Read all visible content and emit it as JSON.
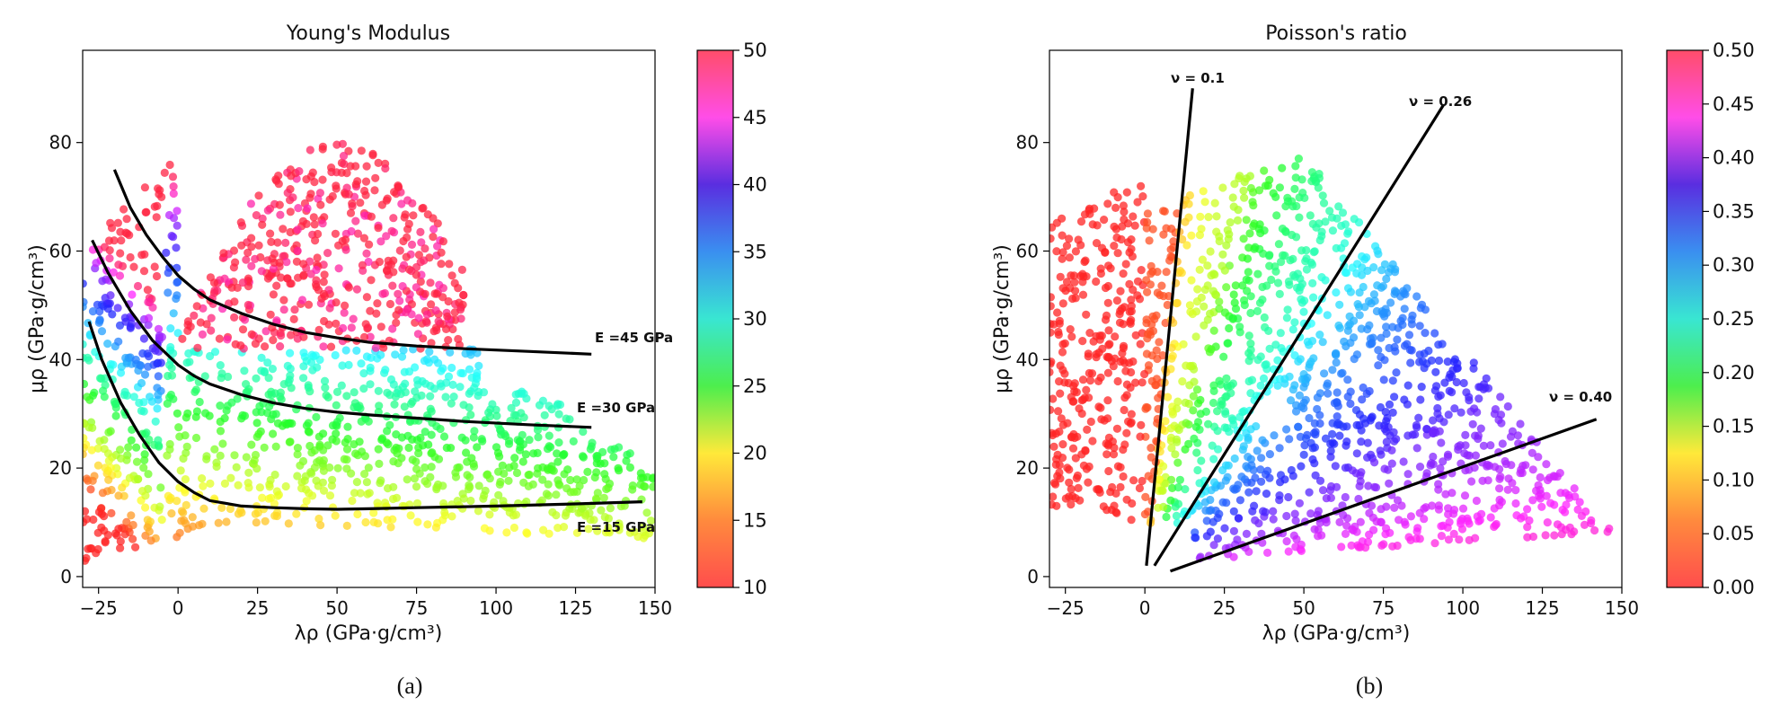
{
  "chart_data": [
    {
      "type": "scatter",
      "title": "Young's Modulus",
      "xlabel": "λρ (GPa·g/cm³)",
      "ylabel": "μρ (GPa·g/cm³)",
      "xlim": [
        -30,
        150
      ],
      "ylim": [
        -2,
        97
      ],
      "xticks": [
        -25,
        0,
        25,
        50,
        75,
        100,
        125,
        150
      ],
      "yticks": [
        0,
        20,
        40,
        60,
        80
      ],
      "xtick_labels": [
        "−25",
        "0",
        "25",
        "50",
        "75",
        "100",
        "125",
        "150"
      ],
      "ytick_labels": [
        "0",
        "20",
        "40",
        "60",
        "80"
      ],
      "color_variable": "E",
      "colorbar": {
        "min": 10,
        "max": 50,
        "ticks": [
          10,
          15,
          20,
          25,
          30,
          35,
          40,
          45,
          50
        ],
        "tick_labels": [
          "10",
          "15",
          "20",
          "25",
          "30",
          "35",
          "40",
          "45",
          "50"
        ]
      },
      "curves": [
        {
          "name": "E = 45 GPa",
          "label": "E =45 GPa",
          "x": [
            -20,
            -15,
            -10,
            -5,
            0,
            5,
            10,
            20,
            30,
            40,
            50,
            60,
            75,
            90,
            110,
            130
          ],
          "y": [
            75,
            68,
            63,
            59,
            55.5,
            53,
            51,
            48.5,
            46.5,
            45,
            44,
            43.2,
            42.5,
            42,
            41.5,
            41
          ]
        },
        {
          "name": "E = 30 GPa",
          "label": "E =30 GPa",
          "x": [
            -27,
            -22,
            -15,
            -8,
            0,
            5,
            10,
            20,
            30,
            40,
            50,
            60,
            75,
            90,
            110,
            130
          ],
          "y": [
            62,
            56,
            49,
            43.5,
            39,
            37,
            35.5,
            33.5,
            32,
            31,
            30.3,
            29.8,
            29.2,
            28.6,
            28,
            27.5
          ]
        },
        {
          "name": "E = 15 GPa",
          "label": "E =15 GPa",
          "x": [
            -28,
            -24,
            -18,
            -12,
            -6,
            0,
            5,
            10,
            20,
            30,
            40,
            50,
            60,
            75,
            100,
            125,
            146
          ],
          "y": [
            47,
            40,
            32,
            26,
            21,
            17.5,
            15.5,
            14,
            13,
            12.7,
            12.5,
            12.4,
            12.5,
            12.7,
            13,
            13.4,
            13.8
          ]
        }
      ],
      "panel_label": "(a)"
    },
    {
      "type": "scatter",
      "title": "Poisson's ratio",
      "xlabel": "λρ (GPa·g/cm³)",
      "ylabel": "μρ (GPa·g/cm³)",
      "xlim": [
        -30,
        150
      ],
      "ylim": [
        -2,
        97
      ],
      "xticks": [
        -25,
        0,
        25,
        50,
        75,
        100,
        125,
        150
      ],
      "yticks": [
        0,
        20,
        40,
        60,
        80
      ],
      "xtick_labels": [
        "−25",
        "0",
        "25",
        "50",
        "75",
        "100",
        "125",
        "150"
      ],
      "ytick_labels": [
        "0",
        "20",
        "40",
        "60",
        "80"
      ],
      "color_variable": "ν",
      "colorbar": {
        "min": 0.0,
        "max": 0.5,
        "ticks": [
          0.0,
          0.05,
          0.1,
          0.15,
          0.2,
          0.25,
          0.3,
          0.35,
          0.4,
          0.45,
          0.5
        ],
        "tick_labels": [
          "0.00",
          "0.05",
          "0.10",
          "0.15",
          "0.20",
          "0.25",
          "0.30",
          "0.35",
          "0.40",
          "0.45",
          "0.50"
        ]
      },
      "curves": [
        {
          "name": "ν = 0.1",
          "label": "ν = 0.1",
          "x": [
            0.5,
            15
          ],
          "y": [
            2,
            90
          ]
        },
        {
          "name": "ν = 0.26",
          "label": "ν = 0.26",
          "x": [
            3,
            94
          ],
          "y": [
            2,
            87
          ]
        },
        {
          "name": "ν = 0.40",
          "label": "ν = 0.40",
          "x": [
            8,
            142
          ],
          "y": [
            1,
            29
          ]
        }
      ],
      "panel_label": "(b)"
    }
  ]
}
